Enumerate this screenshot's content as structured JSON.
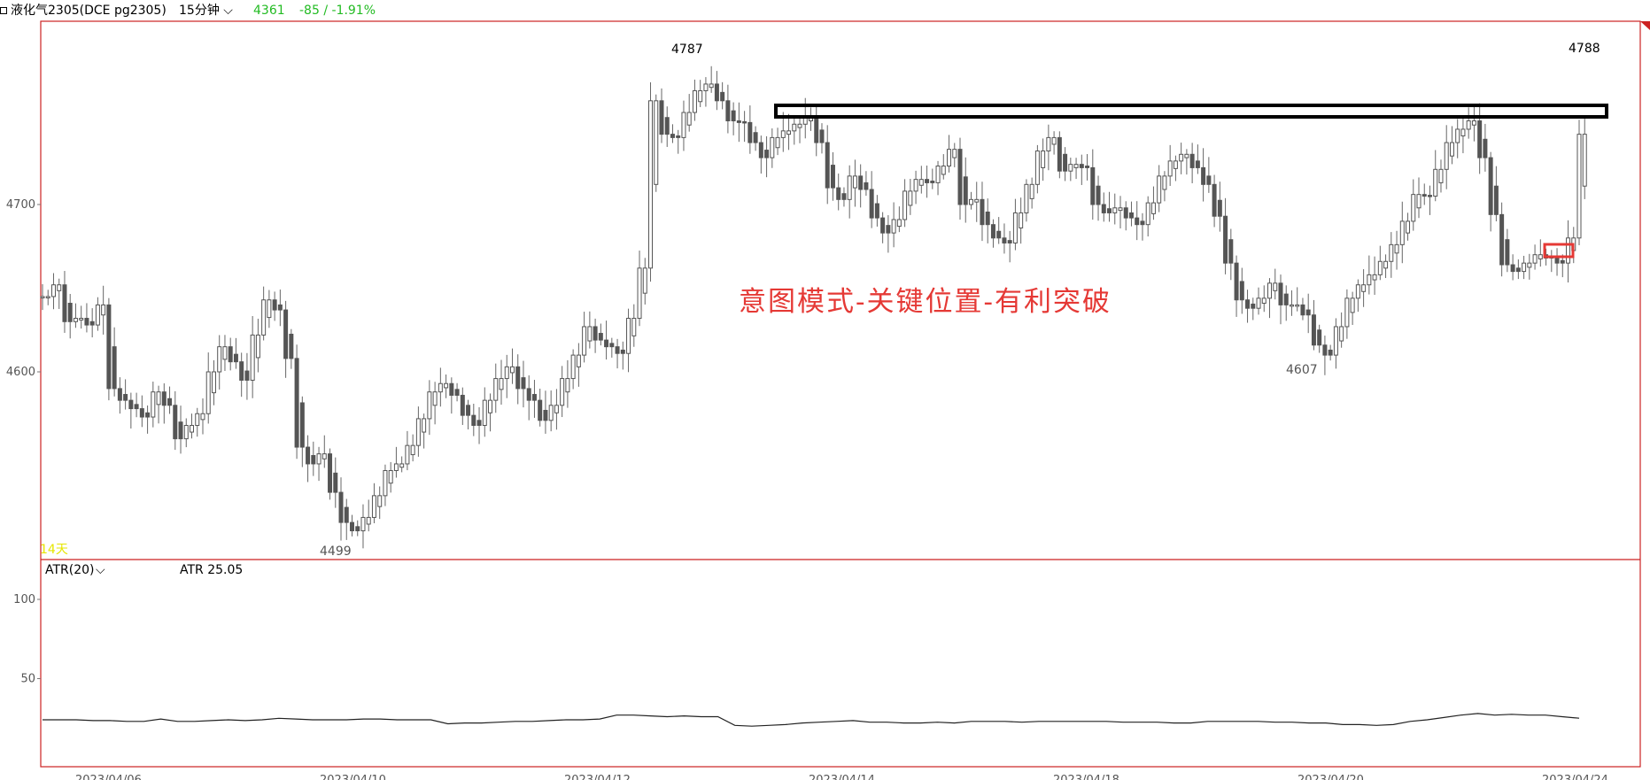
{
  "header": {
    "instrument": "液化气2305(DCE pg2305)",
    "timeframe": "15分钟",
    "last_price": "4361",
    "change": "-85 / -1.91%",
    "change_color": "#22bb22"
  },
  "main_panel": {
    "day_count": "14天",
    "annotation_text": "意图模式-关键位置-有利突破",
    "annotation_color": "#e53935",
    "high_labels": [
      "4787",
      "4788"
    ],
    "low_labels": [
      "4499",
      "4607"
    ]
  },
  "indicator": {
    "name": "ATR(20)",
    "value_label": "ATR 25.05"
  },
  "chart_data": [
    {
      "type": "candlestick",
      "title": "",
      "y_ticks": [
        4600,
        4700
      ],
      "ylim": [
        4490,
        4800
      ],
      "x_ticks": [
        "2023/04/06",
        "2023/04/10",
        "2023/04/12",
        "2023/04/14",
        "2023/04/18",
        "2023/04/20",
        "2023/04/24"
      ],
      "series": [
        {
          "close_path": [
            4645,
            4652,
            4630,
            4632,
            4628,
            4640,
            4590,
            4583,
            4578,
            4573,
            4588,
            4580,
            4560,
            4568,
            4575,
            4600,
            4615,
            4606,
            4595,
            4622,
            4643,
            4637,
            4608,
            4555,
            4545,
            4551,
            4528,
            4510,
            4505,
            4513,
            4526,
            4541,
            4545,
            4556,
            4572,
            4588,
            4593,
            4586,
            4574,
            4568,
            4583,
            4596,
            4603,
            4590,
            4583,
            4571,
            4580,
            4596,
            4610,
            4627,
            4619,
            4615,
            4611,
            4632,
            4662,
            4762,
            4742,
            4740,
            4755,
            4768,
            4772,
            4762,
            4750,
            4749,
            4737,
            4728,
            4740,
            4744,
            4748,
            4752,
            4737,
            4710,
            4703,
            4717,
            4709,
            4692,
            4683,
            4691,
            4708,
            4715,
            4713,
            4723,
            4733,
            4700,
            4703,
            4688,
            4680,
            4677,
            4695,
            4712,
            4732,
            4740,
            4720,
            4724,
            4722,
            4700,
            4695,
            4698,
            4692,
            4688,
            4701,
            4717,
            4726,
            4730,
            4722,
            4712,
            4693,
            4665,
            4643,
            4638,
            4644,
            4653,
            4640,
            4640,
            4634,
            4616,
            4610,
            4627,
            4644,
            4652,
            4658,
            4666,
            4676,
            4690,
            4706,
            4705,
            4721,
            4737,
            4745,
            4750,
            4728,
            4694,
            4664,
            4660,
            4665,
            4670,
            4668,
            4665,
            4680,
            4742
          ]
        },
        {
          "name": "ATR",
          "atr": [
            24,
            24,
            24,
            23.5,
            23.5,
            23,
            23,
            24.5,
            23,
            23,
            23.5,
            24,
            23.5,
            24,
            25,
            24.5,
            24,
            24,
            24,
            24.5,
            24.5,
            24,
            24,
            24,
            21.5,
            22,
            22,
            22.5,
            23,
            23,
            23.5,
            24,
            24,
            24.5,
            27,
            27,
            26.5,
            26,
            26.5,
            26,
            26,
            20.5,
            20,
            20.5,
            21,
            22,
            22.5,
            23,
            23.5,
            22.5,
            22.5,
            22,
            22,
            22.5,
            22,
            23,
            23,
            23,
            22.5,
            23,
            23,
            23,
            23,
            23,
            22.5,
            22.5,
            22.5,
            22,
            22,
            23,
            23,
            23,
            23,
            22.5,
            22.5,
            22,
            22,
            21,
            21,
            20.5,
            21,
            23,
            24,
            25.5,
            27,
            28,
            27,
            27.5,
            27,
            27,
            26,
            25.05
          ]
        }
      ],
      "indicator_y_ticks": [
        50,
        100
      ],
      "indicator_ylim": [
        0,
        110
      ]
    }
  ]
}
